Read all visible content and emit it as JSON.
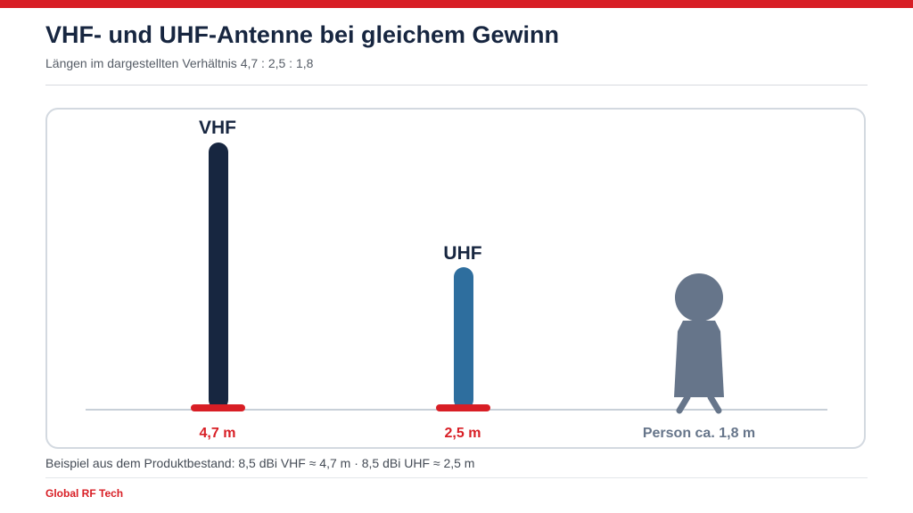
{
  "header": {
    "title": "VHF- und UHF-Antenne bei gleichem Gewinn",
    "subtitle": "Längen im dargestellten Verhältnis 4,7 : 2,5 : 1,8"
  },
  "diagram": {
    "items": [
      {
        "label": "VHF",
        "length_m": 4.7,
        "length_label": "4,7 m",
        "color": "#172640"
      },
      {
        "label": "UHF",
        "length_m": 2.5,
        "length_label": "2,5 m",
        "color": "#2e6e9e"
      }
    ],
    "person": {
      "height_m": 1.8,
      "label": "Person ca. 1,8 m",
      "color": "#66758a",
      "icon": "person-icon"
    },
    "base_color": "#d81e25",
    "ground_color": "#c8d0d8"
  },
  "footer": {
    "note": "Beispiel aus dem Produktbestand: 8,5 dBi VHF ≈ 4,7 m · 8,5 dBi UHF ≈ 2,5 m",
    "brand": "Global RF Tech"
  }
}
